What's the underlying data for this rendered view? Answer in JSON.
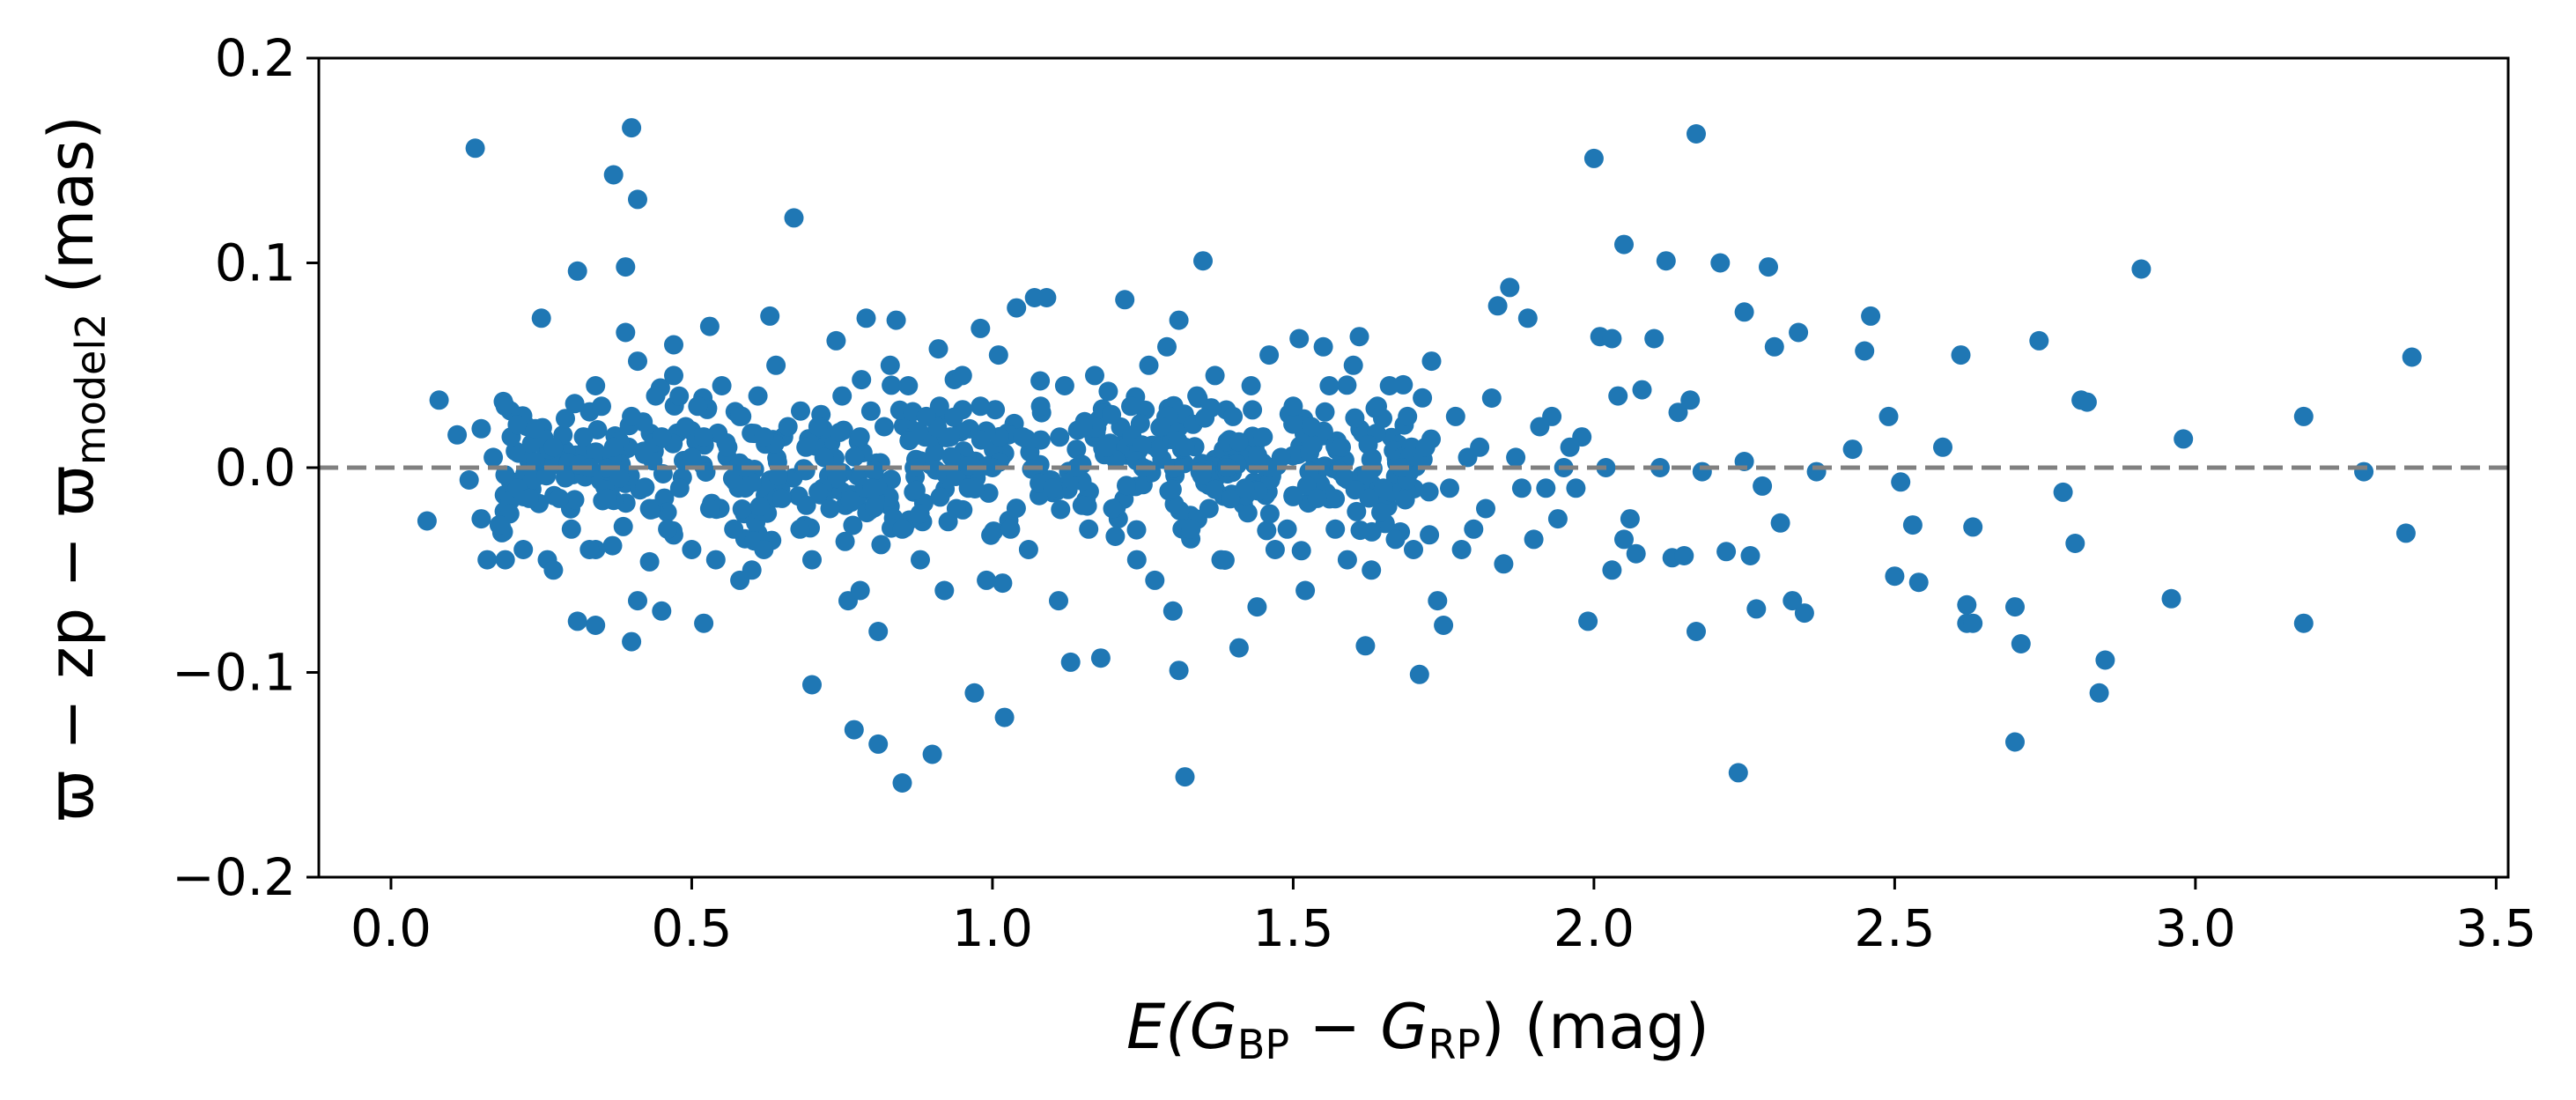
{
  "chart_data": {
    "type": "scatter",
    "title": "",
    "xlabel": {
      "prefix": "E(",
      "g1": "G",
      "sub1": "BP",
      "minus": " − ",
      "g2": "G",
      "sub2": "RP",
      "suffix": ") (mag)"
    },
    "ylabel": {
      "text1": "ϖ − zp − ϖ",
      "sub": "model2",
      "text2": " (mas)"
    },
    "xlim": [
      -0.12,
      3.52
    ],
    "ylim": [
      -0.2,
      0.2
    ],
    "xticks": [
      0.0,
      0.5,
      1.0,
      1.5,
      2.0,
      2.5,
      3.0,
      3.5
    ],
    "xtick_labels": [
      "0.0",
      "0.5",
      "1.0",
      "1.5",
      "2.0",
      "2.5",
      "3.0",
      "3.5"
    ],
    "yticks": [
      -0.2,
      -0.1,
      0.0,
      0.1,
      0.2
    ],
    "ytick_labels": [
      "−0.2",
      "−0.1",
      "0.0",
      "0.1",
      "0.2"
    ],
    "grid": false,
    "reference_line": {
      "y": 0.0,
      "style": "dashed",
      "color": "#808080"
    },
    "marker_color": "#1f77b4",
    "series": [
      {
        "points": [
          [
            0.06,
            -0.026
          ],
          [
            0.08,
            0.033
          ],
          [
            0.11,
            0.016
          ],
          [
            0.13,
            -0.006
          ],
          [
            0.14,
            0.156
          ],
          [
            0.15,
            0.019
          ],
          [
            0.15,
            -0.025
          ],
          [
            0.16,
            -0.045
          ],
          [
            0.17,
            0.005
          ],
          [
            0.18,
            -0.028
          ],
          [
            0.19,
            -0.045
          ],
          [
            0.19,
            0.03
          ],
          [
            0.2,
            0.015
          ],
          [
            0.21,
            0.021
          ],
          [
            0.21,
            -0.01
          ],
          [
            0.22,
            -0.04
          ],
          [
            0.23,
            -0.015
          ],
          [
            0.24,
            0.019
          ],
          [
            0.24,
            0.003
          ],
          [
            0.25,
            0.073
          ],
          [
            0.26,
            -0.045
          ],
          [
            0.27,
            -0.05
          ],
          [
            0.27,
            0.01
          ],
          [
            0.28,
            -0.015
          ],
          [
            0.29,
            0.024
          ],
          [
            0.29,
            -0.005
          ],
          [
            0.3,
            -0.03
          ],
          [
            0.31,
            0.096
          ],
          [
            0.31,
            -0.075
          ],
          [
            0.32,
            0.015
          ],
          [
            0.33,
            0.0
          ],
          [
            0.33,
            -0.04
          ],
          [
            0.34,
            0.04
          ],
          [
            0.34,
            -0.077
          ],
          [
            0.35,
            0.03
          ],
          [
            0.36,
            -0.015
          ],
          [
            0.37,
            0.143
          ],
          [
            0.37,
            0.01
          ],
          [
            0.38,
            -0.005
          ],
          [
            0.39,
            0.066
          ],
          [
            0.39,
            0.098
          ],
          [
            0.4,
            0.166
          ],
          [
            0.4,
            -0.085
          ],
          [
            0.4,
            0.025
          ],
          [
            0.41,
            0.131
          ],
          [
            0.41,
            -0.065
          ],
          [
            0.41,
            0.052
          ],
          [
            0.42,
            0.008
          ],
          [
            0.43,
            -0.02
          ],
          [
            0.43,
            -0.046
          ],
          [
            0.44,
            0.035
          ],
          [
            0.45,
            0.015
          ],
          [
            0.45,
            -0.07
          ],
          [
            0.46,
            -0.03
          ],
          [
            0.47,
            0.045
          ],
          [
            0.47,
            0.06
          ],
          [
            0.48,
            -0.01
          ],
          [
            0.49,
            0.02
          ],
          [
            0.5,
            -0.04
          ],
          [
            0.5,
            0.005
          ],
          [
            0.51,
            0.03
          ],
          [
            0.52,
            -0.076
          ],
          [
            0.52,
            0.015
          ],
          [
            0.53,
            0.069
          ],
          [
            0.53,
            -0.02
          ],
          [
            0.54,
            -0.045
          ],
          [
            0.55,
            0.04
          ],
          [
            0.56,
            0.01
          ],
          [
            0.57,
            -0.03
          ],
          [
            0.58,
            0.025
          ],
          [
            0.58,
            -0.055
          ],
          [
            0.59,
            0.0
          ],
          [
            0.6,
            -0.05
          ],
          [
            0.61,
            0.035
          ],
          [
            0.62,
            0.015
          ],
          [
            0.62,
            -0.04
          ],
          [
            0.63,
            0.074
          ],
          [
            0.64,
            0.05
          ],
          [
            0.65,
            -0.015
          ],
          [
            0.66,
            0.02
          ],
          [
            0.67,
            0.122
          ],
          [
            0.68,
            -0.03
          ],
          [
            0.69,
            0.01
          ],
          [
            0.7,
            -0.106
          ],
          [
            0.7,
            -0.045
          ],
          [
            0.71,
            0.02
          ],
          [
            0.72,
            0.005
          ],
          [
            0.73,
            -0.02
          ],
          [
            0.74,
            0.062
          ],
          [
            0.75,
            0.035
          ],
          [
            0.76,
            -0.065
          ],
          [
            0.77,
            -0.128
          ],
          [
            0.78,
            -0.06
          ],
          [
            0.78,
            0.015
          ],
          [
            0.79,
            0.073
          ],
          [
            0.8,
            -0.01
          ],
          [
            0.81,
            -0.08
          ],
          [
            0.81,
            -0.135
          ],
          [
            0.82,
            0.02
          ],
          [
            0.83,
            0.05
          ],
          [
            0.84,
            0.072
          ],
          [
            0.85,
            -0.154
          ],
          [
            0.85,
            -0.03
          ],
          [
            0.86,
            0.04
          ],
          [
            0.87,
            0.0
          ],
          [
            0.88,
            -0.045
          ],
          [
            0.89,
            0.025
          ],
          [
            0.9,
            -0.14
          ],
          [
            0.91,
            0.058
          ],
          [
            0.92,
            -0.06
          ],
          [
            0.93,
            0.015
          ],
          [
            0.94,
            -0.02
          ],
          [
            0.95,
            0.045
          ],
          [
            0.96,
            -0.01
          ],
          [
            0.97,
            -0.11
          ],
          [
            0.98,
            0.068
          ],
          [
            0.98,
            0.03
          ],
          [
            0.99,
            -0.055
          ],
          [
            1.0,
            0.0
          ],
          [
            1.01,
            0.055
          ],
          [
            1.02,
            -0.122
          ],
          [
            1.03,
            -0.03
          ],
          [
            1.04,
            0.078
          ],
          [
            1.05,
            0.015
          ],
          [
            1.06,
            -0.04
          ],
          [
            1.07,
            0.083
          ],
          [
            1.08,
            0.03
          ],
          [
            1.09,
            0.083
          ],
          [
            1.1,
            -0.01
          ],
          [
            1.11,
            -0.065
          ],
          [
            1.12,
            0.04
          ],
          [
            1.13,
            -0.095
          ],
          [
            1.14,
            0.0
          ],
          [
            1.15,
            0.02
          ],
          [
            1.16,
            -0.03
          ],
          [
            1.17,
            0.045
          ],
          [
            1.18,
            -0.093
          ],
          [
            1.19,
            0.01
          ],
          [
            1.2,
            -0.02
          ],
          [
            1.22,
            0.082
          ],
          [
            1.23,
            0.03
          ],
          [
            1.24,
            -0.045
          ],
          [
            1.25,
            0.0
          ],
          [
            1.26,
            0.05
          ],
          [
            1.27,
            -0.055
          ],
          [
            1.28,
            0.02
          ],
          [
            1.29,
            0.059
          ],
          [
            1.3,
            -0.07
          ],
          [
            1.31,
            -0.099
          ],
          [
            1.31,
            0.072
          ],
          [
            1.32,
            0.01
          ],
          [
            1.32,
            -0.151
          ],
          [
            1.33,
            -0.03
          ],
          [
            1.34,
            0.035
          ],
          [
            1.35,
            0.101
          ],
          [
            1.36,
            -0.02
          ],
          [
            1.37,
            0.045
          ],
          [
            1.38,
            -0.045
          ],
          [
            1.39,
            0.0
          ],
          [
            1.4,
            0.025
          ],
          [
            1.41,
            -0.088
          ],
          [
            1.42,
            -0.01
          ],
          [
            1.43,
            0.04
          ],
          [
            1.44,
            -0.068
          ],
          [
            1.45,
            0.015
          ],
          [
            1.46,
            0.055
          ],
          [
            1.47,
            -0.04
          ],
          [
            1.48,
            0.005
          ],
          [
            1.49,
            -0.03
          ],
          [
            1.5,
            0.03
          ],
          [
            1.51,
            0.063
          ],
          [
            1.52,
            -0.06
          ],
          [
            1.53,
            0.02
          ],
          [
            1.54,
            -0.015
          ],
          [
            1.55,
            0.059
          ],
          [
            1.56,
            0.04
          ],
          [
            1.57,
            -0.03
          ],
          [
            1.58,
            0.01
          ],
          [
            1.59,
            -0.045
          ],
          [
            1.6,
            0.05
          ],
          [
            1.61,
            0.064
          ],
          [
            1.62,
            -0.087
          ],
          [
            1.63,
            -0.05
          ],
          [
            1.64,
            0.03
          ],
          [
            1.65,
            -0.01
          ],
          [
            1.66,
            0.04
          ],
          [
            1.67,
            -0.035
          ],
          [
            1.68,
            0.0
          ],
          [
            1.69,
            0.025
          ],
          [
            1.7,
            -0.04
          ],
          [
            1.71,
            -0.101
          ],
          [
            1.72,
            0.01
          ],
          [
            1.73,
            0.052
          ],
          [
            1.74,
            -0.065
          ],
          [
            1.75,
            -0.077
          ],
          [
            1.76,
            -0.01
          ],
          [
            1.77,
            0.025
          ],
          [
            1.78,
            -0.04
          ],
          [
            1.79,
            0.005
          ],
          [
            1.8,
            -0.03
          ],
          [
            1.81,
            0.01
          ],
          [
            1.82,
            -0.02
          ],
          [
            1.83,
            0.034
          ],
          [
            1.84,
            0.079
          ],
          [
            1.85,
            -0.047
          ],
          [
            1.86,
            0.088
          ],
          [
            1.87,
            0.005
          ],
          [
            1.88,
            -0.01
          ],
          [
            1.89,
            0.073
          ],
          [
            1.9,
            -0.035
          ],
          [
            1.91,
            0.02
          ],
          [
            1.92,
            -0.01
          ],
          [
            1.93,
            0.025
          ],
          [
            1.94,
            -0.025
          ],
          [
            1.95,
            0.0
          ],
          [
            1.96,
            0.01
          ],
          [
            1.97,
            -0.01
          ],
          [
            1.98,
            0.015
          ],
          [
            1.99,
            -0.075
          ],
          [
            2.0,
            0.151
          ],
          [
            2.01,
            0.064
          ],
          [
            2.02,
            0.0
          ],
          [
            2.03,
            0.063
          ],
          [
            2.03,
            -0.05
          ],
          [
            2.04,
            0.035
          ],
          [
            2.05,
            -0.035
          ],
          [
            2.05,
            0.109
          ],
          [
            2.06,
            -0.025
          ],
          [
            2.07,
            -0.042
          ],
          [
            2.08,
            0.038
          ],
          [
            2.1,
            0.063
          ],
          [
            2.11,
            0.0
          ],
          [
            2.12,
            0.101
          ],
          [
            2.13,
            -0.044
          ],
          [
            2.14,
            0.027
          ],
          [
            2.15,
            -0.043
          ],
          [
            2.16,
            0.033
          ],
          [
            2.17,
            -0.08
          ],
          [
            2.17,
            0.163
          ],
          [
            2.18,
            -0.002
          ],
          [
            2.21,
            0.1
          ],
          [
            2.22,
            -0.041
          ],
          [
            2.24,
            -0.149
          ],
          [
            2.25,
            0.003
          ],
          [
            2.25,
            0.076
          ],
          [
            2.26,
            -0.043
          ],
          [
            2.27,
            -0.069
          ],
          [
            2.28,
            -0.009
          ],
          [
            2.29,
            0.098
          ],
          [
            2.3,
            0.059
          ],
          [
            2.31,
            -0.027
          ],
          [
            2.33,
            -0.065
          ],
          [
            2.34,
            0.066
          ],
          [
            2.35,
            -0.071
          ],
          [
            2.37,
            -0.002
          ],
          [
            2.43,
            0.009
          ],
          [
            2.45,
            0.057
          ],
          [
            2.46,
            0.074
          ],
          [
            2.49,
            0.025
          ],
          [
            2.5,
            -0.053
          ],
          [
            2.51,
            -0.007
          ],
          [
            2.53,
            -0.028
          ],
          [
            2.54,
            -0.056
          ],
          [
            2.58,
            0.01
          ],
          [
            2.61,
            0.055
          ],
          [
            2.62,
            -0.076
          ],
          [
            2.62,
            -0.067
          ],
          [
            2.63,
            -0.029
          ],
          [
            2.63,
            -0.076
          ],
          [
            2.7,
            -0.068
          ],
          [
            2.7,
            -0.134
          ],
          [
            2.71,
            -0.086
          ],
          [
            2.74,
            0.062
          ],
          [
            2.78,
            -0.012
          ],
          [
            2.8,
            -0.037
          ],
          [
            2.81,
            0.033
          ],
          [
            2.82,
            0.032
          ],
          [
            2.84,
            -0.11
          ],
          [
            2.85,
            -0.094
          ],
          [
            2.91,
            0.097
          ],
          [
            2.96,
            -0.064
          ],
          [
            2.98,
            0.014
          ],
          [
            3.18,
            0.025
          ],
          [
            3.18,
            -0.076
          ],
          [
            3.28,
            -0.002
          ],
          [
            3.35,
            -0.032
          ],
          [
            3.36,
            0.054
          ]
        ]
      }
    ]
  }
}
